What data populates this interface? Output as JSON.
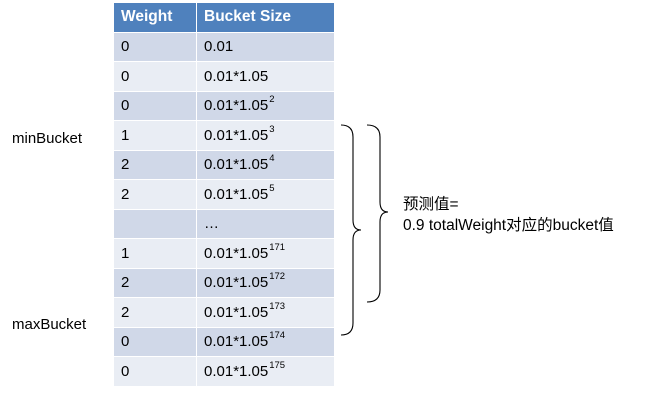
{
  "table": {
    "headers": [
      "Weight",
      "Bucket Size"
    ],
    "rows": [
      {
        "weight": "0",
        "base": "0.01",
        "exp": ""
      },
      {
        "weight": "0",
        "base": "0.01*1.05",
        "exp": ""
      },
      {
        "weight": "0",
        "base": "0.01*1.05",
        "exp": "2"
      },
      {
        "weight": "1",
        "base": "0.01*1.05",
        "exp": "3"
      },
      {
        "weight": "2",
        "base": "0.01*1.05",
        "exp": "4"
      },
      {
        "weight": "2",
        "base": "0.01*1.05",
        "exp": "5"
      },
      {
        "weight": "",
        "base": "…",
        "exp": ""
      },
      {
        "weight": "1",
        "base": "0.01*1.05",
        "exp": "171"
      },
      {
        "weight": "2",
        "base": "0.01*1.05",
        "exp": "172"
      },
      {
        "weight": "2",
        "base": "0.01*1.05",
        "exp": "173"
      },
      {
        "weight": "0",
        "base": "0.01*1.05",
        "exp": "174"
      },
      {
        "weight": "0",
        "base": "0.01*1.05",
        "exp": "175"
      }
    ]
  },
  "labels": {
    "min_bucket": "minBucket",
    "max_bucket": "maxBucket"
  },
  "annotation": {
    "line1": "预测值=",
    "line2": "0.9 totalWeight对应的bucket值"
  },
  "colors": {
    "header": "#4f81bd",
    "row_odd": "#d0d8e8",
    "row_even": "#e9edf4",
    "brace": "#000000"
  }
}
